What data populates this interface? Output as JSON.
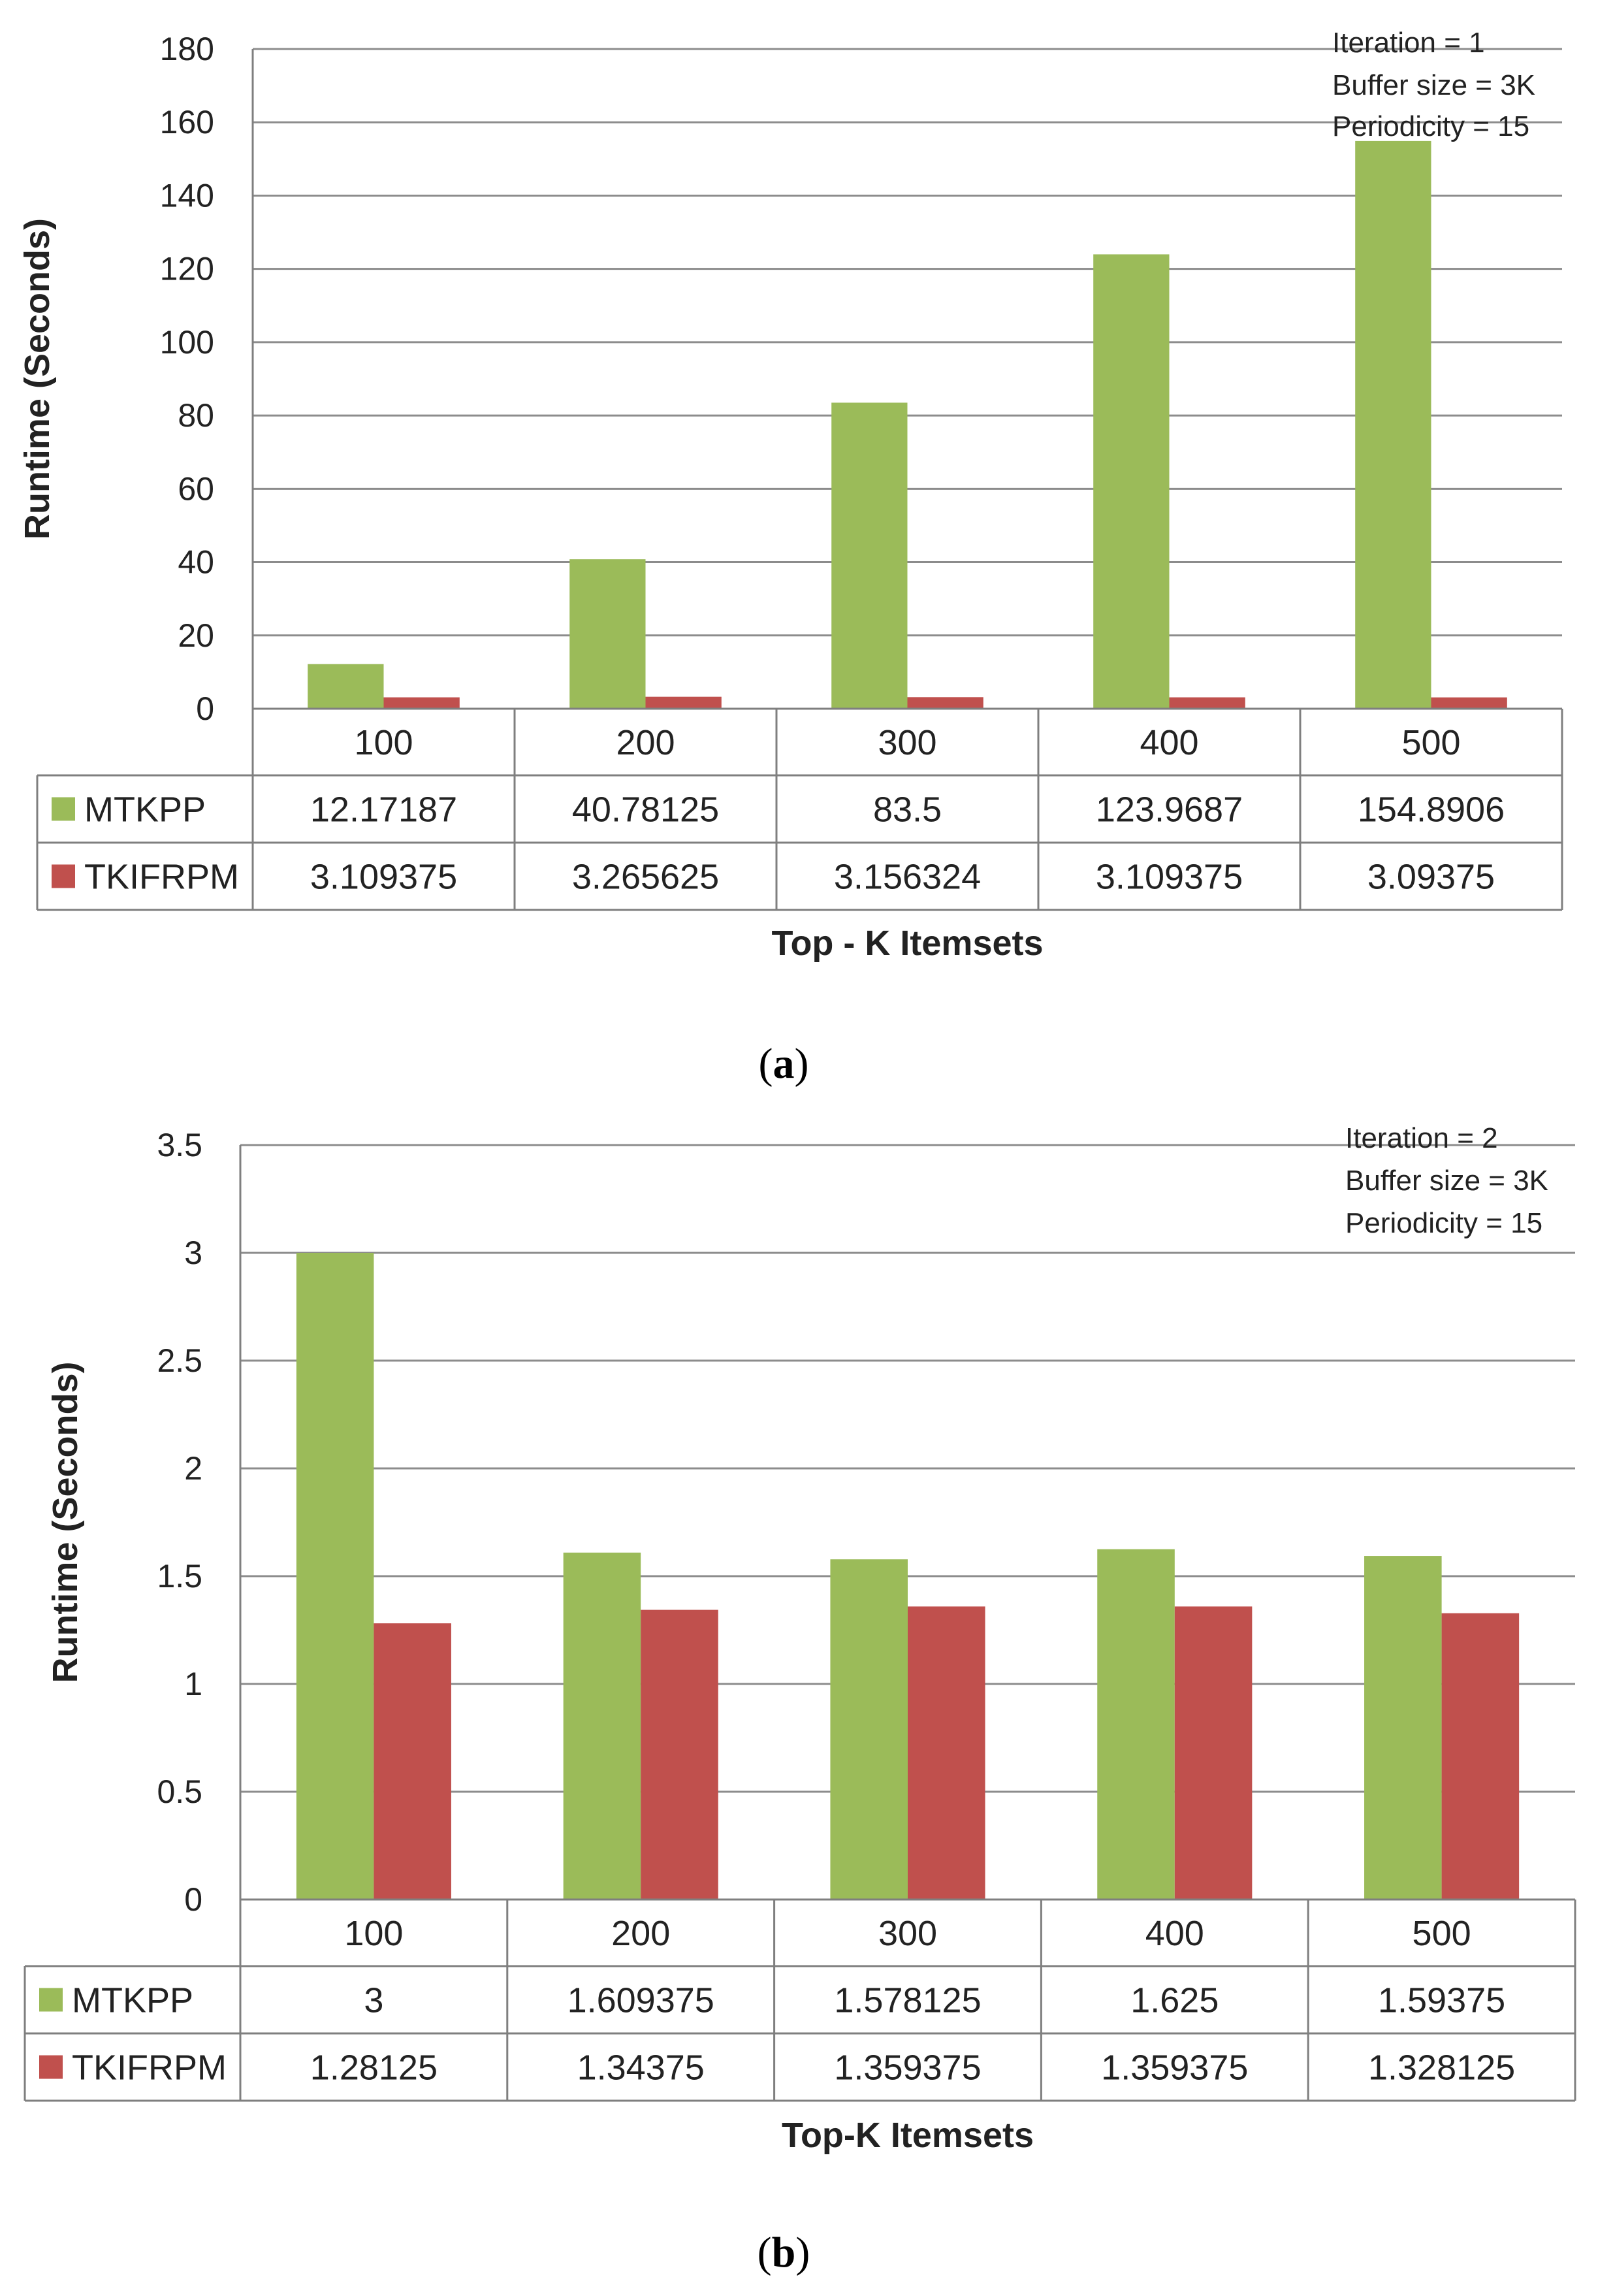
{
  "chart_data": [
    {
      "type": "bar",
      "panel": "a",
      "caption_letter": "a",
      "categories": [
        "100",
        "200",
        "300",
        "400",
        "500"
      ],
      "series": [
        {
          "name": "MTKPP",
          "color": "#9bbb59",
          "values": [
            12.17187,
            40.78125,
            83.5,
            123.9687,
            154.8906
          ],
          "labels": [
            "12.17187",
            "40.78125",
            "83.5",
            "123.9687",
            "154.8906"
          ]
        },
        {
          "name": "TKIFRPM",
          "color": "#c0504d",
          "values": [
            3.109375,
            3.265625,
            3.156324,
            3.109375,
            3.09375
          ],
          "labels": [
            "3.109375",
            "3.265625",
            "3.156324",
            "3.109375",
            "3.09375"
          ]
        }
      ],
      "ylabel": "Runtime (Seconds)",
      "xlabel": "Top - K Itemsets",
      "ylim": [
        0,
        180
      ],
      "yticks": [
        0,
        20,
        40,
        60,
        80,
        100,
        120,
        140,
        160,
        180
      ],
      "ytick_labels": [
        "0",
        "20",
        "40",
        "60",
        "80",
        "100",
        "120",
        "140",
        "160",
        "180"
      ],
      "annotations": [
        "Iteration = 1",
        "Buffer size = 3K",
        "Periodicity = 15"
      ],
      "grid": true,
      "legend": "data-table"
    },
    {
      "type": "bar",
      "panel": "b",
      "caption_letter": "b",
      "categories": [
        "100",
        "200",
        "300",
        "400",
        "500"
      ],
      "series": [
        {
          "name": "MTKPP",
          "color": "#9bbb59",
          "values": [
            3,
            1.609375,
            1.578125,
            1.625,
            1.59375
          ],
          "labels": [
            "3",
            "1.609375",
            "1.578125",
            "1.625",
            "1.59375"
          ]
        },
        {
          "name": "TKIFRPM",
          "color": "#c0504d",
          "values": [
            1.28125,
            1.34375,
            1.359375,
            1.359375,
            1.328125
          ],
          "labels": [
            "1.28125",
            "1.34375",
            "1.359375",
            "1.359375",
            "1.328125"
          ]
        }
      ],
      "ylabel": "Runtime (Seconds)",
      "xlabel": "Top-K Itemsets",
      "ylim": [
        0,
        3.5
      ],
      "yticks": [
        0,
        0.5,
        1,
        1.5,
        2,
        2.5,
        3,
        3.5
      ],
      "ytick_labels": [
        "0",
        "0.5",
        "1",
        "1.5",
        "2",
        "2.5",
        "3",
        "3.5"
      ],
      "annotations": [
        "Iteration  = 2",
        "Buffer size = 3K",
        "Periodicity = 15"
      ],
      "grid": true,
      "legend": "data-table"
    }
  ]
}
